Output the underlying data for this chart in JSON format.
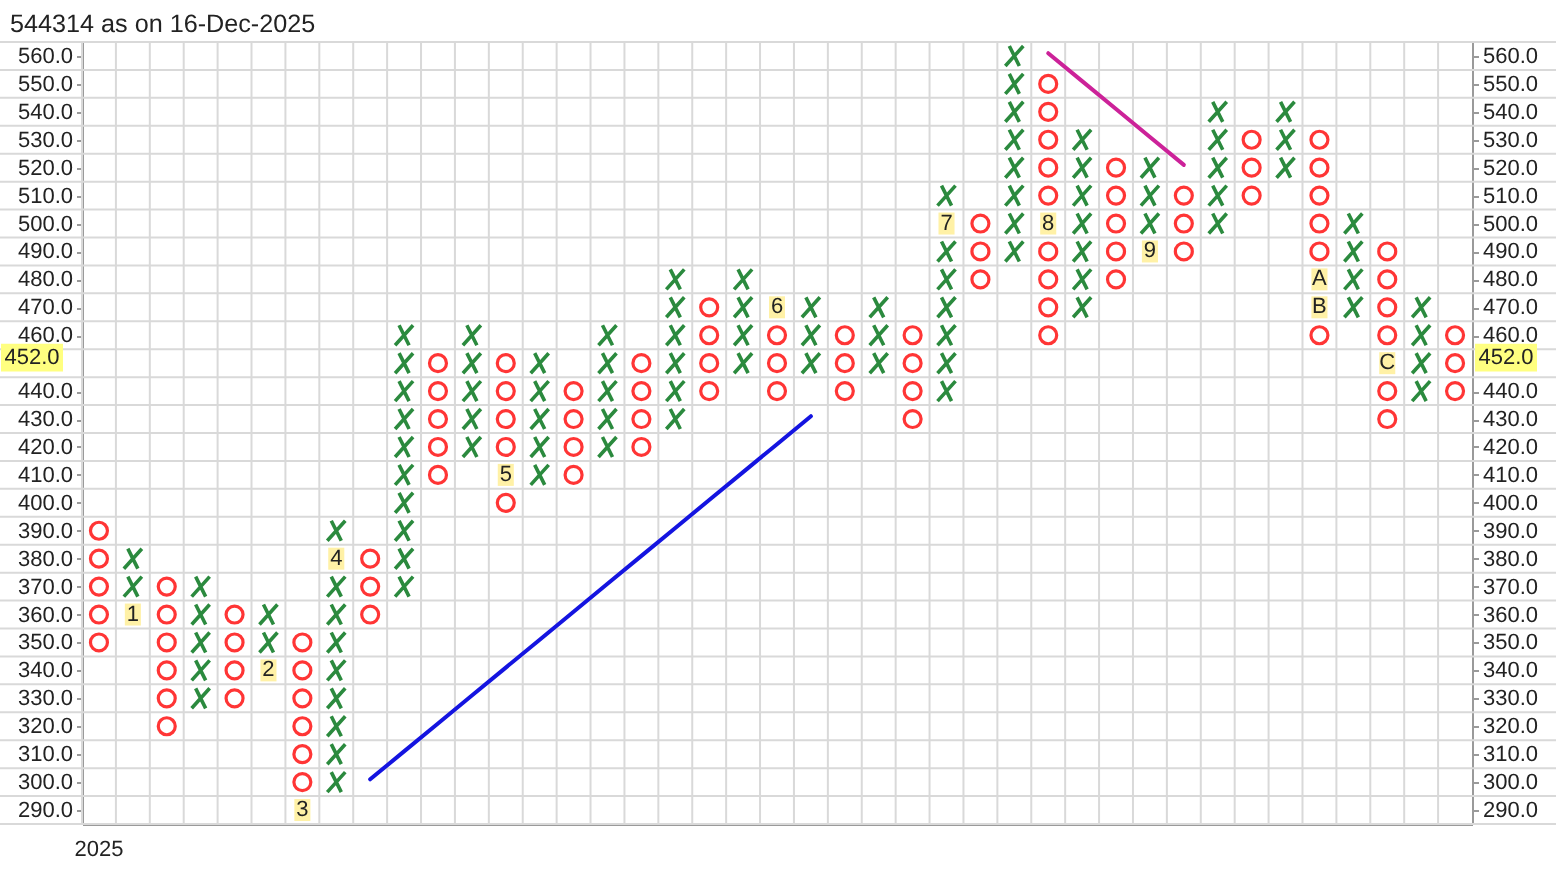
{
  "chart_data": {
    "type": "scatter",
    "title": "544314 as on 16-Dec-2025",
    "categories": [
      "2025",
      null,
      null,
      null,
      null,
      null,
      null,
      null,
      null,
      null,
      null,
      null,
      null,
      null,
      null,
      null,
      null,
      null,
      null,
      null,
      null,
      null,
      null,
      null,
      null,
      null,
      null,
      null,
      null,
      null,
      null,
      null,
      null,
      null,
      null,
      null,
      null,
      null,
      null,
      null,
      null
    ],
    "ylim": [
      285,
      565
    ],
    "yticks": [
      {
        "value": 285,
        "label": null
      },
      {
        "value": 290,
        "label": "290.0"
      },
      {
        "value": 295,
        "label": null
      },
      {
        "value": 300,
        "label": "300.0"
      },
      {
        "value": 305,
        "label": null
      },
      {
        "value": 310,
        "label": "310.0"
      },
      {
        "value": 315,
        "label": null
      },
      {
        "value": 320,
        "label": "320.0"
      },
      {
        "value": 325,
        "label": null
      },
      {
        "value": 330,
        "label": "330.0"
      },
      {
        "value": 335,
        "label": null
      },
      {
        "value": 340,
        "label": "340.0"
      },
      {
        "value": 345,
        "label": null
      },
      {
        "value": 350,
        "label": "350.0"
      },
      {
        "value": 355,
        "label": null
      },
      {
        "value": 360,
        "label": "360.0"
      },
      {
        "value": 365,
        "label": null
      },
      {
        "value": 370,
        "label": "370.0"
      },
      {
        "value": 375,
        "label": null
      },
      {
        "value": 380,
        "label": "380.0"
      },
      {
        "value": 385,
        "label": null
      },
      {
        "value": 390,
        "label": "390.0"
      },
      {
        "value": 395,
        "label": null
      },
      {
        "value": 400,
        "label": "400.0"
      },
      {
        "value": 405,
        "label": null
      },
      {
        "value": 410,
        "label": "410.0"
      },
      {
        "value": 415,
        "label": null
      },
      {
        "value": 420,
        "label": "420.0"
      },
      {
        "value": 425,
        "label": null
      },
      {
        "value": 430,
        "label": "430.0"
      },
      {
        "value": 435,
        "label": null
      },
      {
        "value": 440,
        "label": "440.0"
      },
      {
        "value": 445,
        "label": null
      },
      {
        "value": 455,
        "label": null
      },
      {
        "value": 460,
        "label": "460.0"
      },
      {
        "value": 465,
        "label": null
      },
      {
        "value": 470,
        "label": "470.0"
      },
      {
        "value": 475,
        "label": null
      },
      {
        "value": 480,
        "label": "480.0"
      },
      {
        "value": 485,
        "label": null
      },
      {
        "value": 490,
        "label": "490.0"
      },
      {
        "value": 495,
        "label": null
      },
      {
        "value": 500,
        "label": "500.0"
      },
      {
        "value": 505,
        "label": null
      },
      {
        "value": 510,
        "label": "510.0"
      },
      {
        "value": 515,
        "label": null
      },
      {
        "value": 520,
        "label": "520.0"
      },
      {
        "value": 525,
        "label": null
      },
      {
        "value": 530,
        "label": "530.0"
      },
      {
        "value": 535,
        "label": null
      },
      {
        "value": 540,
        "label": "540.0"
      },
      {
        "value": 545,
        "label": null
      },
      {
        "value": 550,
        "label": "550.0"
      },
      {
        "value": 555,
        "label": null
      },
      {
        "value": 560,
        "label": "560.0"
      },
      {
        "value": 565,
        "label": null
      }
    ],
    "y2lim": [
      285,
      565
    ],
    "y2ticks": [
      {
        "value": 285,
        "label": null
      },
      {
        "value": 290,
        "label": "290.0"
      },
      {
        "value": 295,
        "label": null
      },
      {
        "value": 300,
        "label": "300.0"
      },
      {
        "value": 305,
        "label": null
      },
      {
        "value": 310,
        "label": "310.0"
      },
      {
        "value": 315,
        "label": null
      },
      {
        "value": 320,
        "label": "320.0"
      },
      {
        "value": 325,
        "label": null
      },
      {
        "value": 330,
        "label": "330.0"
      },
      {
        "value": 335,
        "label": null
      },
      {
        "value": 340,
        "label": "340.0"
      },
      {
        "value": 345,
        "label": null
      },
      {
        "value": 350,
        "label": "350.0"
      },
      {
        "value": 355,
        "label": null
      },
      {
        "value": 360,
        "label": "360.0"
      },
      {
        "value": 365,
        "label": null
      },
      {
        "value": 370,
        "label": "370.0"
      },
      {
        "value": 375,
        "label": null
      },
      {
        "value": 380,
        "label": "380.0"
      },
      {
        "value": 385,
        "label": null
      },
      {
        "value": 390,
        "label": "390.0"
      },
      {
        "value": 395,
        "label": null
      },
      {
        "value": 400,
        "label": "400.0"
      },
      {
        "value": 405,
        "label": null
      },
      {
        "value": 410,
        "label": "410.0"
      },
      {
        "value": 415,
        "label": null
      },
      {
        "value": 420,
        "label": "420.0"
      },
      {
        "value": 425,
        "label": null
      },
      {
        "value": 430,
        "label": "430.0"
      },
      {
        "value": 435,
        "label": null
      },
      {
        "value": 440,
        "label": "440.0"
      },
      {
        "value": 445,
        "label": null
      },
      {
        "value": 455,
        "label": null
      },
      {
        "value": 460,
        "label": "460.0"
      },
      {
        "value": 465,
        "label": null
      },
      {
        "value": 470,
        "label": "470.0"
      },
      {
        "value": 475,
        "label": null
      },
      {
        "value": 480,
        "label": "480.0"
      },
      {
        "value": 485,
        "label": null
      },
      {
        "value": 490,
        "label": "490.0"
      },
      {
        "value": 495,
        "label": null
      },
      {
        "value": 500,
        "label": "500.0"
      },
      {
        "value": 505,
        "label": null
      },
      {
        "value": 510,
        "label": "510.0"
      },
      {
        "value": 515,
        "label": null
      },
      {
        "value": 520,
        "label": "520.0"
      },
      {
        "value": 525,
        "label": null
      },
      {
        "value": 530,
        "label": "530.0"
      },
      {
        "value": 535,
        "label": null
      },
      {
        "value": 540,
        "label": "540.0"
      },
      {
        "value": 545,
        "label": null
      },
      {
        "value": 550,
        "label": "550.0"
      },
      {
        "value": 555,
        "label": null
      },
      {
        "value": 560,
        "label": "560.0"
      },
      {
        "value": 565,
        "label": null
      }
    ],
    "grid": true,
    "series": [
      {
        "type": "line",
        "color": "#1414e0",
        "values": [
          null,
          null,
          null,
          null,
          null,
          null,
          null,
          null,
          301,
          311,
          321,
          331,
          341,
          351,
          361,
          371,
          381,
          391,
          401,
          411,
          421,
          431,
          null,
          null,
          null,
          null,
          null,
          null,
          null,
          null,
          null,
          null,
          null,
          null,
          null,
          null,
          null,
          null,
          null,
          null,
          null
        ]
      },
      {
        "type": "line",
        "color": "#cc2299",
        "values": [
          null,
          null,
          null,
          null,
          null,
          null,
          null,
          null,
          null,
          null,
          null,
          null,
          null,
          null,
          null,
          null,
          null,
          null,
          null,
          null,
          null,
          null,
          null,
          null,
          null,
          null,
          null,
          null,
          561,
          551,
          541,
          531,
          521,
          null,
          null,
          null,
          null,
          null,
          null,
          null,
          null
        ]
      },
      {
        "color": "#2b8a3e",
        "marker": "cross",
        "values": [
          null,
          370,
          null,
          330,
          null,
          350,
          null,
          300,
          null,
          370,
          null,
          420,
          null,
          410,
          null,
          420,
          null,
          430,
          null,
          450,
          null,
          450,
          null,
          450,
          null,
          440,
          null,
          490,
          null,
          470,
          null,
          500,
          null,
          500,
          null,
          520,
          null,
          470,
          null,
          440,
          null
        ]
      },
      {
        "color": "#2b8a3e",
        "marker": "cross",
        "values": [
          null,
          380,
          null,
          340,
          null,
          360,
          null,
          310,
          null,
          380,
          null,
          430,
          null,
          420,
          null,
          430,
          null,
          440,
          null,
          460,
          null,
          460,
          null,
          460,
          null,
          450,
          null,
          500,
          null,
          480,
          null,
          510,
          null,
          510,
          null,
          530,
          null,
          480,
          null,
          450,
          null
        ]
      },
      {
        "color": "#2b8a3e",
        "marker": "cross",
        "values": [
          null,
          null,
          null,
          350,
          null,
          null,
          null,
          320,
          null,
          390,
          null,
          440,
          null,
          430,
          null,
          440,
          null,
          450,
          null,
          470,
          null,
          470,
          null,
          470,
          null,
          460,
          null,
          510,
          null,
          490,
          null,
          520,
          null,
          520,
          null,
          540,
          null,
          490,
          null,
          460,
          null
        ]
      },
      {
        "color": "#2b8a3e",
        "marker": "cross",
        "values": [
          null,
          null,
          null,
          360,
          null,
          null,
          null,
          330,
          null,
          400,
          null,
          450,
          null,
          440,
          null,
          450,
          null,
          460,
          null,
          480,
          null,
          null,
          null,
          null,
          null,
          470,
          null,
          520,
          null,
          500,
          null,
          null,
          null,
          530,
          null,
          null,
          null,
          500,
          null,
          470,
          null
        ]
      },
      {
        "color": "#2b8a3e",
        "marker": "cross",
        "values": [
          null,
          null,
          null,
          370,
          null,
          null,
          null,
          340,
          null,
          410,
          null,
          460,
          null,
          450,
          null,
          460,
          null,
          470,
          null,
          null,
          null,
          null,
          null,
          null,
          null,
          480,
          null,
          530,
          null,
          510,
          null,
          null,
          null,
          540,
          null,
          null,
          null,
          null,
          null,
          null,
          null
        ]
      },
      {
        "color": "#2b8a3e",
        "marker": "cross",
        "values": [
          null,
          null,
          null,
          null,
          null,
          null,
          null,
          350,
          null,
          420,
          null,
          null,
          null,
          null,
          null,
          null,
          null,
          480,
          null,
          null,
          null,
          null,
          null,
          null,
          null,
          490,
          null,
          540,
          null,
          520,
          null,
          null,
          null,
          null,
          null,
          null,
          null,
          null,
          null,
          null,
          null
        ]
      },
      {
        "color": "#2b8a3e",
        "marker": "cross",
        "values": [
          null,
          null,
          null,
          null,
          null,
          null,
          null,
          360,
          null,
          430,
          null,
          null,
          null,
          null,
          null,
          null,
          null,
          null,
          null,
          null,
          null,
          null,
          null,
          null,
          null,
          510,
          null,
          550,
          null,
          530,
          null,
          null,
          null,
          null,
          null,
          null,
          null,
          null,
          null,
          null,
          null
        ]
      },
      {
        "color": "#2b8a3e",
        "marker": "cross",
        "values": [
          null,
          null,
          null,
          null,
          null,
          null,
          null,
          370,
          null,
          440,
          null,
          null,
          null,
          null,
          null,
          null,
          null,
          null,
          null,
          null,
          null,
          null,
          null,
          null,
          null,
          null,
          null,
          560,
          null,
          null,
          null,
          null,
          null,
          null,
          null,
          null,
          null,
          null,
          null,
          null,
          null
        ]
      },
      {
        "color": "#2b8a3e",
        "marker": "cross",
        "values": [
          null,
          null,
          null,
          null,
          null,
          null,
          null,
          390,
          null,
          450,
          null,
          null,
          null,
          null,
          null,
          null,
          null,
          null,
          null,
          null,
          null,
          null,
          null,
          null,
          null,
          null,
          null,
          null,
          null,
          null,
          null,
          null,
          null,
          null,
          null,
          null,
          null,
          null,
          null,
          null,
          null
        ]
      },
      {
        "color": "#2b8a3e",
        "marker": "cross",
        "values": [
          null,
          null,
          null,
          null,
          null,
          null,
          null,
          null,
          null,
          460,
          null,
          null,
          null,
          null,
          null,
          null,
          null,
          null,
          null,
          null,
          null,
          null,
          null,
          null,
          null,
          null,
          null,
          null,
          null,
          null,
          null,
          null,
          null,
          null,
          null,
          null,
          null,
          null,
          null,
          null,
          null
        ]
      },
      {
        "color": "#ff3535",
        "marker": "circle",
        "values": [
          350,
          null,
          320,
          null,
          330,
          null,
          300,
          null,
          360,
          null,
          410,
          null,
          400,
          null,
          410,
          null,
          420,
          null,
          440,
          null,
          440,
          null,
          440,
          null,
          430,
          null,
          480,
          null,
          460,
          null,
          480,
          null,
          490,
          null,
          510,
          null,
          460,
          null,
          430,
          null,
          440
        ]
      },
      {
        "color": "#ff3535",
        "marker": "circle",
        "values": [
          360,
          null,
          330,
          null,
          340,
          null,
          310,
          null,
          370,
          null,
          420,
          null,
          420,
          null,
          420,
          null,
          430,
          null,
          450,
          null,
          450,
          null,
          450,
          null,
          440,
          null,
          490,
          null,
          470,
          null,
          490,
          null,
          500,
          null,
          520,
          null,
          490,
          null,
          440,
          null,
          450
        ]
      },
      {
        "color": "#ff3535",
        "marker": "circle",
        "values": [
          370,
          null,
          340,
          null,
          350,
          null,
          320,
          null,
          380,
          null,
          430,
          null,
          430,
          null,
          430,
          null,
          440,
          null,
          460,
          null,
          460,
          null,
          460,
          null,
          450,
          null,
          500,
          null,
          480,
          null,
          500,
          null,
          510,
          null,
          530,
          null,
          500,
          null,
          460,
          null,
          460
        ]
      },
      {
        "color": "#ff3535",
        "marker": "circle",
        "values": [
          380,
          null,
          350,
          null,
          360,
          null,
          330,
          null,
          null,
          null,
          440,
          null,
          440,
          null,
          440,
          null,
          450,
          null,
          470,
          null,
          null,
          null,
          null,
          null,
          460,
          null,
          null,
          null,
          490,
          null,
          510,
          null,
          null,
          null,
          null,
          null,
          510,
          null,
          470,
          null,
          null
        ]
      },
      {
        "color": "#ff3535",
        "marker": "circle",
        "values": [
          390,
          null,
          360,
          null,
          null,
          null,
          340,
          null,
          null,
          null,
          450,
          null,
          450,
          null,
          null,
          null,
          null,
          null,
          null,
          null,
          null,
          null,
          null,
          null,
          null,
          null,
          null,
          null,
          510,
          null,
          520,
          null,
          null,
          null,
          null,
          null,
          520,
          null,
          480,
          null,
          null
        ]
      },
      {
        "color": "#ff3535",
        "marker": "circle",
        "values": [
          null,
          null,
          370,
          null,
          null,
          null,
          350,
          null,
          null,
          null,
          null,
          null,
          null,
          null,
          null,
          null,
          null,
          null,
          null,
          null,
          null,
          null,
          null,
          null,
          null,
          null,
          null,
          null,
          520,
          null,
          null,
          null,
          null,
          null,
          null,
          null,
          530,
          null,
          490,
          null,
          null
        ]
      },
      {
        "color": "#ff3535",
        "marker": "circle",
        "values": [
          null,
          null,
          null,
          null,
          null,
          null,
          null,
          null,
          null,
          null,
          null,
          null,
          null,
          null,
          null,
          null,
          null,
          null,
          null,
          null,
          null,
          null,
          null,
          null,
          null,
          null,
          null,
          null,
          530,
          null,
          null,
          null,
          null,
          null,
          null,
          null,
          null,
          null,
          null,
          null,
          null
        ]
      },
      {
        "color": "#ff3535",
        "marker": "circle",
        "values": [
          null,
          null,
          null,
          null,
          null,
          null,
          null,
          null,
          null,
          null,
          null,
          null,
          null,
          null,
          null,
          null,
          null,
          null,
          null,
          null,
          null,
          null,
          null,
          null,
          null,
          null,
          null,
          null,
          540,
          null,
          null,
          null,
          null,
          null,
          null,
          null,
          null,
          null,
          null,
          null,
          null
        ]
      },
      {
        "color": "#ff3535",
        "marker": "circle",
        "values": [
          null,
          null,
          null,
          null,
          null,
          null,
          null,
          null,
          null,
          null,
          null,
          null,
          null,
          null,
          null,
          null,
          null,
          null,
          null,
          null,
          null,
          null,
          null,
          null,
          null,
          null,
          null,
          null,
          550,
          null,
          null,
          null,
          null,
          null,
          null,
          null,
          null,
          null,
          null,
          null,
          null
        ]
      },
      {
        "name": "1",
        "color": "#fff1a6",
        "marker": "square",
        "values": [
          null,
          360,
          null,
          null,
          null,
          null,
          null,
          null,
          null,
          null,
          null,
          null,
          null,
          null,
          null,
          null,
          null,
          null,
          null,
          null,
          null,
          null,
          null,
          null,
          null,
          null,
          null,
          null,
          null,
          null,
          null,
          null,
          null,
          null,
          null,
          null,
          null,
          null,
          null,
          null,
          null
        ]
      },
      {
        "name": "2",
        "color": "#fff1a6",
        "marker": "square",
        "values": [
          null,
          null,
          null,
          null,
          null,
          340,
          null,
          null,
          null,
          null,
          null,
          null,
          null,
          null,
          null,
          null,
          null,
          null,
          null,
          null,
          null,
          null,
          null,
          null,
          null,
          null,
          null,
          null,
          null,
          null,
          null,
          null,
          null,
          null,
          null,
          null,
          null,
          null,
          null,
          null,
          null
        ]
      },
      {
        "name": "3",
        "color": "#fff1a6",
        "marker": "square",
        "values": [
          null,
          null,
          null,
          null,
          null,
          null,
          290,
          null,
          null,
          null,
          null,
          null,
          null,
          null,
          null,
          null,
          null,
          null,
          null,
          null,
          null,
          null,
          null,
          null,
          null,
          null,
          null,
          null,
          null,
          null,
          null,
          null,
          null,
          null,
          null,
          null,
          null,
          null,
          null,
          null,
          null
        ]
      },
      {
        "name": "4",
        "color": "#fff1a6",
        "marker": "square",
        "values": [
          null,
          null,
          null,
          null,
          null,
          null,
          null,
          380,
          null,
          null,
          null,
          null,
          null,
          null,
          null,
          null,
          null,
          null,
          null,
          null,
          null,
          null,
          null,
          null,
          null,
          null,
          null,
          null,
          null,
          null,
          null,
          null,
          null,
          null,
          null,
          null,
          null,
          null,
          null,
          null,
          null
        ]
      },
      {
        "name": "5",
        "color": "#fff1a6",
        "marker": "square",
        "values": [
          null,
          null,
          null,
          null,
          null,
          null,
          null,
          null,
          null,
          null,
          null,
          null,
          410,
          null,
          null,
          null,
          null,
          null,
          null,
          null,
          null,
          null,
          null,
          null,
          null,
          null,
          null,
          null,
          null,
          null,
          null,
          null,
          null,
          null,
          null,
          null,
          null,
          null,
          null,
          null,
          null
        ]
      },
      {
        "name": "6",
        "color": "#fff1a6",
        "marker": "square",
        "values": [
          null,
          null,
          null,
          null,
          null,
          null,
          null,
          null,
          null,
          null,
          null,
          null,
          null,
          null,
          null,
          null,
          null,
          null,
          null,
          null,
          470,
          null,
          null,
          null,
          null,
          null,
          null,
          null,
          null,
          null,
          null,
          null,
          null,
          null,
          null,
          null,
          null,
          null,
          null,
          null,
          null
        ]
      },
      {
        "name": "7",
        "color": "#fff1a6",
        "marker": "square",
        "values": [
          null,
          null,
          null,
          null,
          null,
          null,
          null,
          null,
          null,
          null,
          null,
          null,
          null,
          null,
          null,
          null,
          null,
          null,
          null,
          null,
          null,
          null,
          null,
          null,
          null,
          500,
          null,
          null,
          null,
          null,
          null,
          null,
          null,
          null,
          null,
          null,
          null,
          null,
          null,
          null,
          null
        ]
      },
      {
        "name": "8",
        "color": "#fff1a6",
        "marker": "square",
        "values": [
          null,
          null,
          null,
          null,
          null,
          null,
          null,
          null,
          null,
          null,
          null,
          null,
          null,
          null,
          null,
          null,
          null,
          null,
          null,
          null,
          null,
          null,
          null,
          null,
          null,
          null,
          null,
          null,
          500,
          null,
          null,
          null,
          null,
          null,
          null,
          null,
          null,
          null,
          null,
          null,
          null
        ]
      },
      {
        "name": "9",
        "color": "#fff1a6",
        "marker": "square",
        "values": [
          null,
          null,
          null,
          null,
          null,
          null,
          null,
          null,
          null,
          null,
          null,
          null,
          null,
          null,
          null,
          null,
          null,
          null,
          null,
          null,
          null,
          null,
          null,
          null,
          null,
          null,
          null,
          null,
          null,
          null,
          null,
          490,
          null,
          null,
          null,
          null,
          null,
          null,
          null,
          null,
          null
        ]
      },
      {
        "name": "A",
        "color": "#fff1a6",
        "marker": "square",
        "values": [
          null,
          null,
          null,
          null,
          null,
          null,
          null,
          null,
          null,
          null,
          null,
          null,
          null,
          null,
          null,
          null,
          null,
          null,
          null,
          null,
          null,
          null,
          null,
          null,
          null,
          null,
          null,
          null,
          null,
          null,
          null,
          null,
          null,
          null,
          null,
          null,
          480,
          null,
          null,
          null,
          null
        ]
      },
      {
        "name": "B",
        "color": "#fff1a6",
        "marker": "square",
        "values": [
          null,
          null,
          null,
          null,
          null,
          null,
          null,
          null,
          null,
          null,
          null,
          null,
          null,
          null,
          null,
          null,
          null,
          null,
          null,
          null,
          null,
          null,
          null,
          null,
          null,
          null,
          null,
          null,
          null,
          null,
          null,
          null,
          null,
          null,
          null,
          null,
          470,
          null,
          null,
          null,
          null
        ]
      },
      {
        "name": "C",
        "color": "#fff1a6",
        "marker": "square",
        "values": [
          null,
          null,
          null,
          null,
          null,
          null,
          null,
          null,
          null,
          null,
          null,
          null,
          null,
          null,
          null,
          null,
          null,
          null,
          null,
          null,
          null,
          null,
          null,
          null,
          null,
          null,
          null,
          null,
          null,
          null,
          null,
          null,
          null,
          null,
          null,
          null,
          null,
          null,
          450,
          null,
          null
        ]
      }
    ],
    "annotations": [
      "452.0",
      "452.0"
    ]
  }
}
